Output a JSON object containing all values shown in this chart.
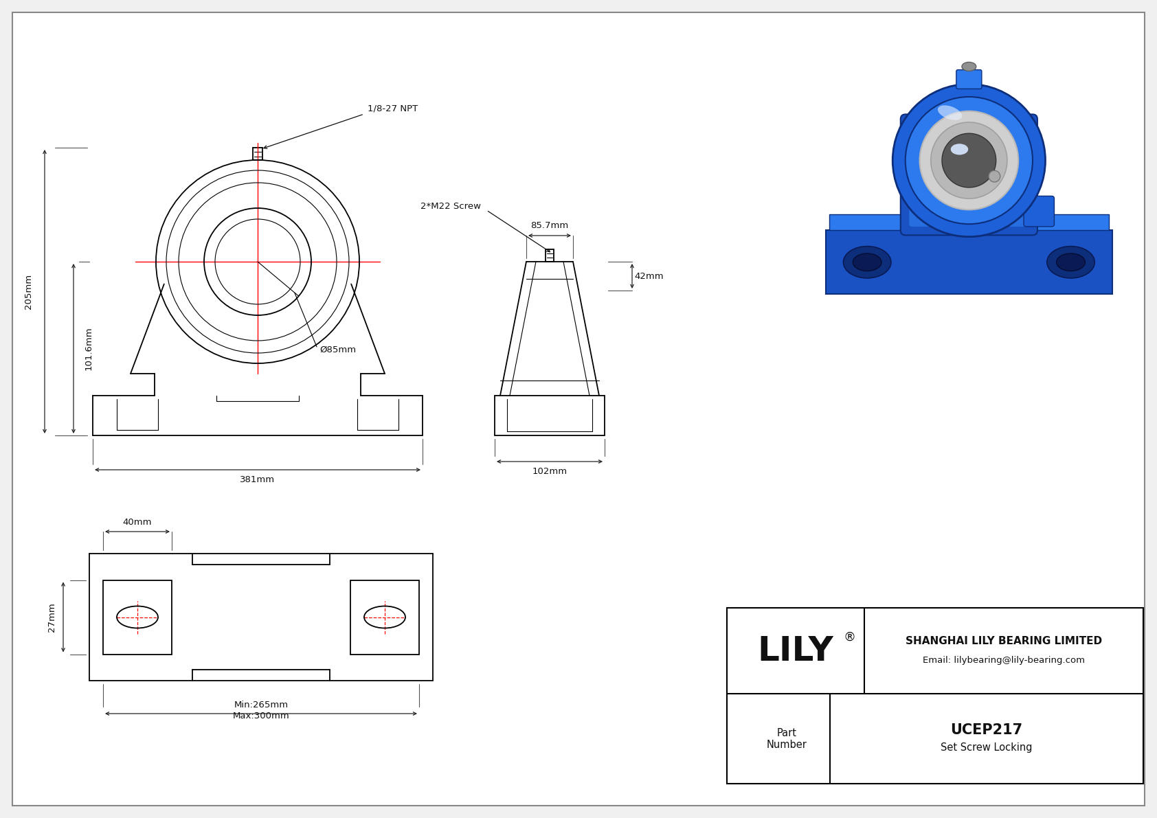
{
  "bg_color": "#f0f0f0",
  "drawing_bg": "#ffffff",
  "line_color": "#000000",
  "red_line_color": "#ff0000",
  "dim_color": "#222222",
  "company": "SHANGHAI LILY BEARING LIMITED",
  "email": "Email: lilybearing@lily-bearing.com",
  "part_number": "UCEP217",
  "locking": "Set Screw Locking",
  "part_label": "Part\nNumber",
  "lily_brand": "LILY",
  "dims": {
    "total_height": "205mm",
    "shaft_height": "101.6mm",
    "bore": "Ø85mm",
    "width": "381mm",
    "side_width": "85.7mm",
    "side_height": "42mm",
    "side_base": "102mm",
    "slot_dim1": "40mm",
    "slot_dim2": "27mm",
    "slot_min": "Min:265mm",
    "slot_max": "Max:300mm",
    "npt": "1/8-27 NPT",
    "screw": "2*M22 Screw"
  },
  "iso_colors": {
    "blue_main": "#1a52c4",
    "blue_dark": "#0d2e7a",
    "blue_mid": "#1e60d8",
    "blue_light": "#2d7aee",
    "blue_top": "#3388ff",
    "silver_outer": "#d0d0d0",
    "silver_mid": "#b8b8b8",
    "silver_inner": "#a0a0a0",
    "bore_dark": "#606060",
    "bore_black": "#404040",
    "white_spec": "#e8f0ff"
  }
}
